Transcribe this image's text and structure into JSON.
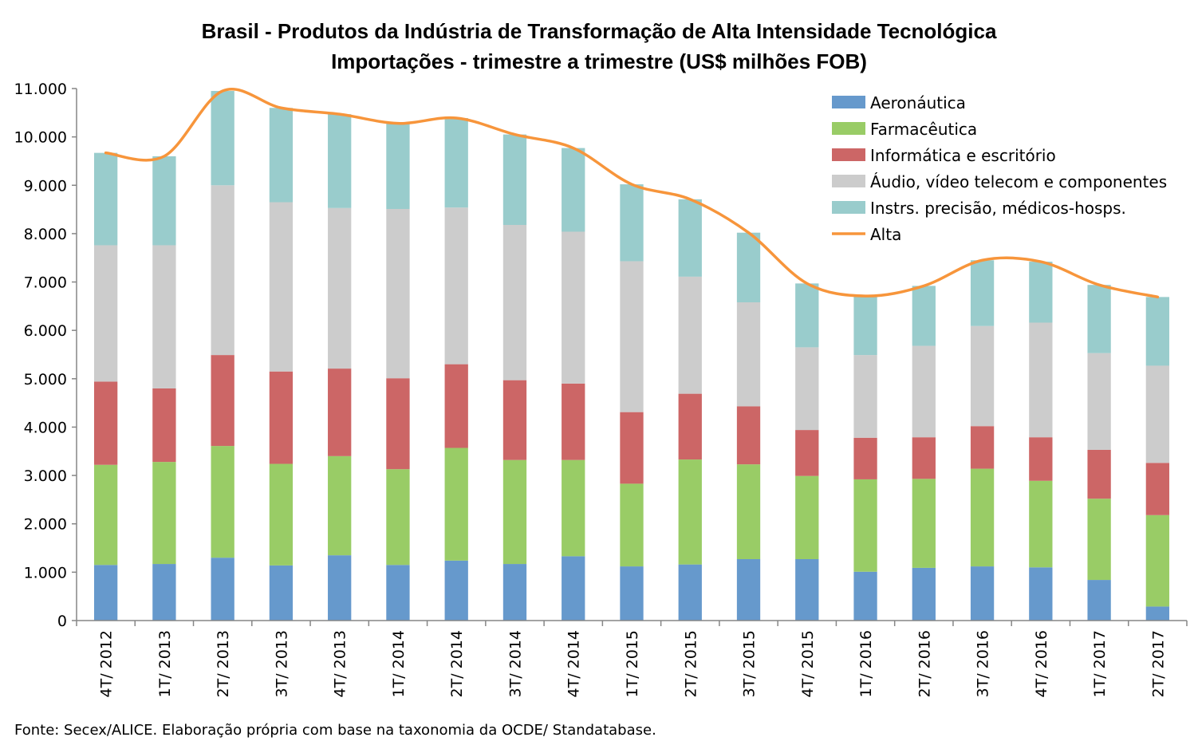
{
  "chart_data": {
    "type": "bar",
    "stacked": true,
    "title": "Brasil - Produtos da Indústria de Transformação de Alta Intensidade Tecnológica",
    "subtitle": "Importações - trimestre a trimestre (US$ milhões FOB)",
    "xlabel": "",
    "ylabel": "",
    "ylim": [
      0,
      11000
    ],
    "y_ticks": [
      {
        "value": 0,
        "label": "0"
      },
      {
        "value": 1000,
        "label": "1.000"
      },
      {
        "value": 2000,
        "label": "2.000"
      },
      {
        "value": 3000,
        "label": "3.000"
      },
      {
        "value": 4000,
        "label": "4.000"
      },
      {
        "value": 5000,
        "label": "5.000"
      },
      {
        "value": 6000,
        "label": "6.000"
      },
      {
        "value": 7000,
        "label": "7.000"
      },
      {
        "value": 8000,
        "label": "8.000"
      },
      {
        "value": 9000,
        "label": "9.000"
      },
      {
        "value": 10000,
        "label": "10.000"
      },
      {
        "value": 11000,
        "label": "11.000"
      }
    ],
    "grid": false,
    "legend_position": "top-right",
    "categories": [
      "4T/ 2012",
      "1T/ 2013",
      "2T/ 2013",
      "3T/ 2013",
      "4T/ 2013",
      "1T/ 2014",
      "2T/ 2014",
      "3T/ 2014",
      "4T/ 2014",
      "1T/ 2015",
      "2T/ 2015",
      "3T/ 2015",
      "4T/ 2015",
      "1T/ 2016",
      "2T/ 2016",
      "3T/ 2016",
      "4T/ 2016",
      "1T/ 2017",
      "2T/ 2017"
    ],
    "series": [
      {
        "name": "Aeronáutica",
        "color": "#6699cc",
        "values": [
          1150,
          1170,
          1300,
          1140,
          1350,
          1150,
          1240,
          1170,
          1330,
          1120,
          1160,
          1270,
          1270,
          1010,
          1090,
          1120,
          1100,
          840,
          290
        ]
      },
      {
        "name": "Farmacêutica",
        "color": "#99cc66",
        "values": [
          2070,
          2110,
          2310,
          2100,
          2050,
          1980,
          2330,
          2150,
          1990,
          1710,
          2170,
          1960,
          1720,
          1910,
          1840,
          2020,
          1790,
          1680,
          1890
        ]
      },
      {
        "name": "Informática e escritório",
        "color": "#cc6666",
        "values": [
          1720,
          1520,
          1880,
          1910,
          1810,
          1880,
          1730,
          1650,
          1580,
          1480,
          1360,
          1200,
          950,
          860,
          860,
          880,
          900,
          1010,
          1080
        ]
      },
      {
        "name": "Áudio, vídeo telecom e componentes",
        "color": "#cccccc",
        "values": [
          2820,
          2960,
          3510,
          3500,
          3320,
          3500,
          3240,
          3210,
          3140,
          3120,
          2420,
          2150,
          1710,
          1710,
          1890,
          2070,
          2370,
          2000,
          2010
        ]
      },
      {
        "name": "Instrs. precisão, médicos-hosps.",
        "color": "#99cccc",
        "values": [
          1910,
          1840,
          1950,
          1950,
          1940,
          1770,
          1850,
          1870,
          1730,
          1590,
          1600,
          1440,
          1320,
          1220,
          1240,
          1360,
          1260,
          1410,
          1420
        ]
      }
    ],
    "line_series": {
      "name": "Alta",
      "color": "#f7953b",
      "values": [
        9670,
        9600,
        10950,
        10600,
        10470,
        10280,
        10390,
        10050,
        9770,
        9020,
        8710,
        8020,
        6970,
        6710,
        6920,
        7450,
        7420,
        6940,
        6690
      ]
    },
    "source": "Fonte: Secex/ALICE. Elaboração própria com base na taxonomia da OCDE/ Standatabase."
  }
}
